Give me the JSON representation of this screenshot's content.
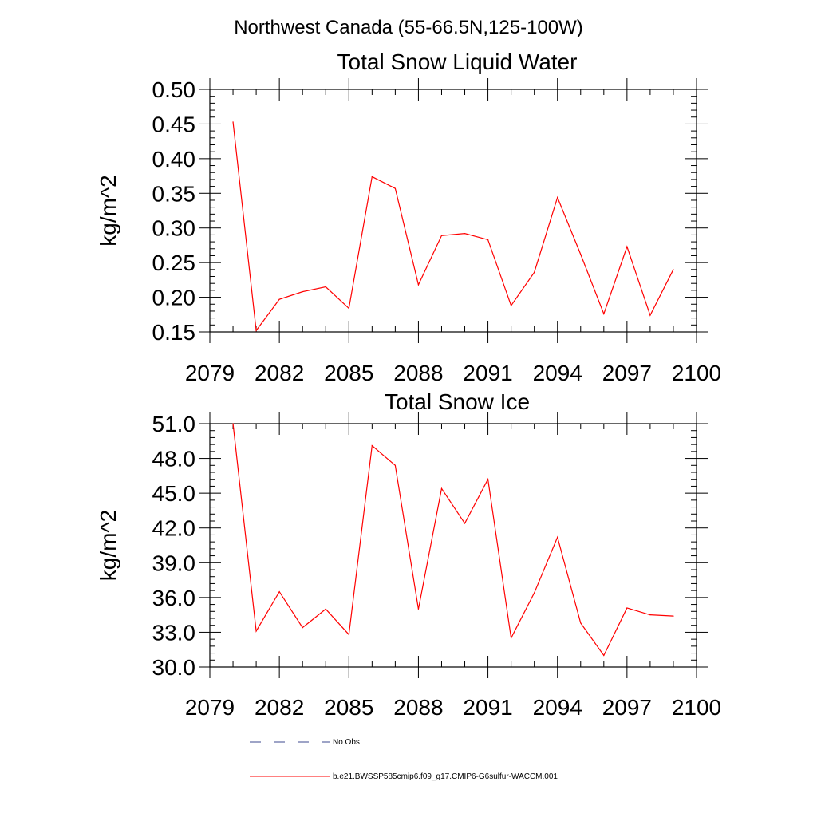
{
  "figure": {
    "title": "Northwest Canada (55-66.5N,125-100W)"
  },
  "chart_data": [
    {
      "type": "line",
      "title": "Total Snow Liquid Water",
      "xlabel": "",
      "ylabel": "kg/m^2",
      "xlim": [
        2079,
        2100
      ],
      "ylim": [
        0.15,
        0.5
      ],
      "xticks": [
        "2079",
        "2082",
        "2085",
        "2088",
        "2091",
        "2094",
        "2097",
        "2100"
      ],
      "yticks": [
        "0.15",
        "0.20",
        "0.25",
        "0.30",
        "0.35",
        "0.40",
        "0.45",
        "0.50"
      ],
      "series": [
        {
          "name": "b.e21.BWSSP585cmip6.f09_g17.CMIP6-G6sulfur-WACCM.001",
          "color": "#ff0000",
          "x": [
            2080,
            2081,
            2082,
            2083,
            2084,
            2085,
            2086,
            2087,
            2088,
            2089,
            2090,
            2091,
            2092,
            2093,
            2094,
            2095,
            2096,
            2097,
            2098,
            2099
          ],
          "values": [
            0.453,
            0.152,
            0.197,
            0.208,
            0.215,
            0.184,
            0.374,
            0.357,
            0.218,
            0.289,
            0.292,
            0.283,
            0.188,
            0.236,
            0.344,
            0.262,
            0.176,
            0.273,
            0.174,
            0.24
          ]
        }
      ]
    },
    {
      "type": "line",
      "title": "Total Snow Ice",
      "xlabel": "",
      "ylabel": "kg/m^2",
      "xlim": [
        2079,
        2100
      ],
      "ylim": [
        30.0,
        51.0
      ],
      "xticks": [
        "2079",
        "2082",
        "2085",
        "2088",
        "2091",
        "2094",
        "2097",
        "2100"
      ],
      "yticks": [
        "30.0",
        "33.0",
        "36.0",
        "39.0",
        "42.0",
        "45.0",
        "48.0",
        "51.0"
      ],
      "series": [
        {
          "name": "b.e21.BWSSP585cmip6.f09_g17.CMIP6-G6sulfur-WACCM.001",
          "color": "#ff0000",
          "x": [
            2080,
            2081,
            2082,
            2083,
            2084,
            2085,
            2086,
            2087,
            2088,
            2089,
            2090,
            2091,
            2092,
            2093,
            2094,
            2095,
            2096,
            2097,
            2098,
            2099
          ],
          "values": [
            51.0,
            33.1,
            36.5,
            33.4,
            35.0,
            32.8,
            49.1,
            47.4,
            35.0,
            45.4,
            42.4,
            46.2,
            32.5,
            36.4,
            41.2,
            33.8,
            31.0,
            35.1,
            34.5,
            34.4
          ]
        }
      ]
    }
  ],
  "legend": {
    "items": [
      {
        "label": "No Obs",
        "style": "dashed",
        "color": "#3d4a8f"
      },
      {
        "label": "b.e21.BWSSP585cmip6.f09_g17.CMIP6-G6sulfur-WACCM.001",
        "style": "solid",
        "color": "#ff0000"
      }
    ]
  }
}
